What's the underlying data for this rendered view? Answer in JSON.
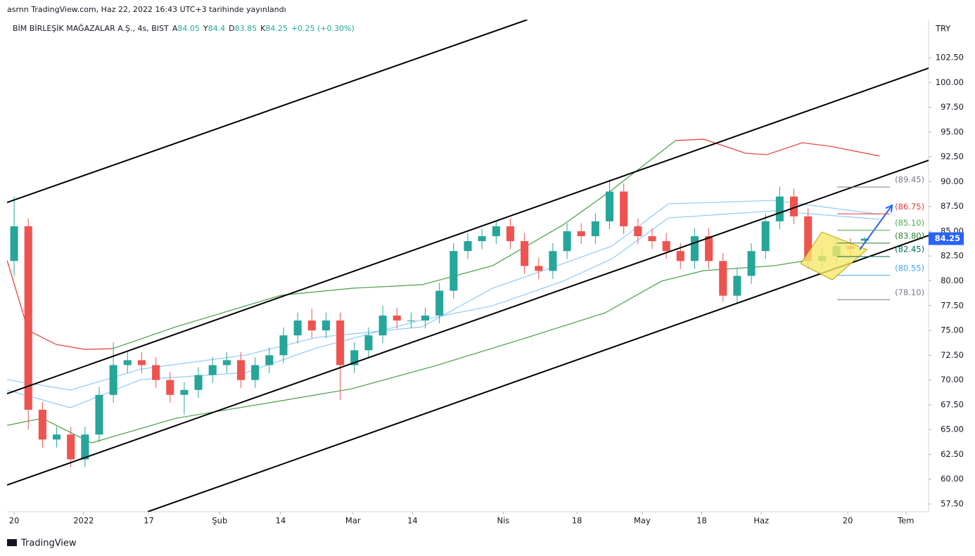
{
  "header": {
    "published": "asrnn TradingView.com, Haz 22, 2022 16:43 UTC+3 tarihinde yayınlandı",
    "symbol": "BİM BİRLEŞİK MAĞAZALAR A.Ş., 4s, BIST",
    "open_label": "A",
    "high_label": "Y",
    "low_label": "D",
    "close_label": "K",
    "change": "+0.25 (+0.30%)",
    "currency": "TRY",
    "logo": "TradingView"
  },
  "chart_data": {
    "type": "candlestick",
    "up_color": "#26a69a",
    "down_color": "#ef5350",
    "xlim": [
      -0.5,
      64.5
    ],
    "ylim": [
      56.72,
      106.33
    ],
    "xticks": [
      {
        "value": 0,
        "label": "20"
      },
      {
        "value": 4.9,
        "label": "2022"
      },
      {
        "value": 9.5,
        "label": "17"
      },
      {
        "value": 14.5,
        "label": "Şub"
      },
      {
        "value": 18.8,
        "label": "14"
      },
      {
        "value": 23.9,
        "label": "Mar"
      },
      {
        "value": 28.1,
        "label": "14"
      },
      {
        "value": 34.5,
        "label": "Nis"
      },
      {
        "value": 39.7,
        "label": "18"
      },
      {
        "value": 44.3,
        "label": "May"
      },
      {
        "value": 48.5,
        "label": "18"
      },
      {
        "value": 52.7,
        "label": "Haz"
      },
      {
        "value": 58.8,
        "label": "20"
      },
      {
        "value": 62.9,
        "label": "Tem"
      }
    ],
    "yticks": [
      {
        "value": 57.5,
        "label": "57.50"
      },
      {
        "value": 60,
        "label": "60.00"
      },
      {
        "value": 62.5,
        "label": "62.50"
      },
      {
        "value": 65,
        "label": "65.00"
      },
      {
        "value": 67.5,
        "label": "67.50"
      },
      {
        "value": 70,
        "label": "70.00"
      },
      {
        "value": 72.5,
        "label": "72.50"
      },
      {
        "value": 75,
        "label": "75.00"
      },
      {
        "value": 77.5,
        "label": "77.50"
      },
      {
        "value": 80,
        "label": "80.00"
      },
      {
        "value": 82.5,
        "label": "82.50"
      },
      {
        "value": 85,
        "label": "85.00"
      },
      {
        "value": 87.5,
        "label": "87.50"
      },
      {
        "value": 90,
        "label": "90.00"
      },
      {
        "value": 92.5,
        "label": "92.50"
      },
      {
        "value": 95,
        "label": "95.00"
      },
      {
        "value": 97.5,
        "label": "97.50"
      },
      {
        "value": 100,
        "label": "100.00"
      },
      {
        "value": 102.5,
        "label": "102.50"
      }
    ],
    "series": {
      "open": [
        82,
        85.5,
        67,
        64,
        64.5,
        62,
        64.5,
        68.5,
        71.5,
        72,
        71.5,
        70,
        68.5,
        69,
        70.5,
        71.5,
        72,
        70,
        71.5,
        72.5,
        74.5,
        76,
        75,
        76,
        71.5,
        73,
        74.5,
        76.5,
        76,
        76,
        76.5,
        79,
        83,
        84,
        84.5,
        85.5,
        84,
        81.5,
        81,
        83,
        85,
        84.5,
        86,
        89,
        85.5,
        84.5,
        84,
        83,
        82,
        84.5,
        82,
        78.5,
        80.5,
        83,
        86,
        88.5,
        86.5,
        82,
        82.5,
        83.5,
        84.05
      ],
      "high": [
        88.5,
        86.3,
        67.8,
        65.3,
        65.3,
        65.3,
        69.3,
        73.8,
        72.8,
        72.8,
        72.3,
        70.8,
        69.8,
        71.3,
        72.3,
        72.8,
        72.8,
        72.3,
        73.3,
        75.3,
        76.8,
        77.2,
        76.8,
        76.8,
        73.8,
        75.3,
        77.5,
        77.3,
        76.8,
        77.3,
        79.8,
        83.8,
        84.8,
        85.3,
        86.1,
        86.3,
        84.8,
        82.3,
        83.8,
        85.8,
        85.8,
        86.8,
        90.2,
        89.8,
        86.3,
        85.3,
        84.8,
        83.8,
        85.3,
        85.3,
        82.8,
        81.3,
        83.8,
        86.8,
        89.5,
        89.3,
        87.3,
        83.3,
        84.3,
        84.3,
        84.4
      ],
      "low": [
        80.5,
        65,
        63.2,
        63.2,
        61.2,
        61.2,
        63.7,
        67.7,
        70.7,
        70.7,
        69.2,
        67.7,
        66.5,
        68.2,
        69.7,
        70.7,
        69.2,
        69.2,
        70.7,
        71.7,
        73.7,
        74.2,
        74.2,
        68,
        70.7,
        72.2,
        73.7,
        75.2,
        75.2,
        75.2,
        75.7,
        78.2,
        82.2,
        83.2,
        83.7,
        83.2,
        80.7,
        80.2,
        80.2,
        82.2,
        83.7,
        83.7,
        85.2,
        84.7,
        83.7,
        83.2,
        82.2,
        81.2,
        81.2,
        81.2,
        77.9,
        77.7,
        79.7,
        82.2,
        85.2,
        85.7,
        81.2,
        81.2,
        81.7,
        82.4,
        83.85
      ],
      "close": [
        85.5,
        67,
        64,
        64.5,
        62,
        64.5,
        68.5,
        71.5,
        72,
        71.5,
        70,
        68.5,
        69,
        70.5,
        71.5,
        72,
        70,
        71.5,
        72.5,
        74.5,
        76,
        75,
        76,
        71.5,
        73,
        74.5,
        76.5,
        76,
        76,
        76.5,
        79,
        83,
        84,
        84.5,
        85.5,
        84,
        81.5,
        81,
        83,
        85,
        84.5,
        86,
        89,
        85.5,
        84.5,
        84,
        83,
        82,
        84.5,
        82,
        78.5,
        80.5,
        83,
        86,
        88.5,
        86.5,
        82,
        82.5,
        83.5,
        83.2,
        84.25
      ]
    },
    "price_tag_color": "#2962ff",
    "trendline_color": "#000000",
    "trendlines": [
      {
        "x": [
          -0.5,
          36.2
        ],
        "y": [
          87.9,
          106.33
        ]
      },
      {
        "x": [
          -0.5,
          64.5
        ],
        "y": [
          68.62,
          101.44
        ]
      },
      {
        "x": [
          -0.5,
          64.5
        ],
        "y": [
          59.41,
          92.15
        ]
      },
      {
        "x": [
          9.43,
          64.5
        ],
        "y": [
          56.72,
          84.57
        ]
      }
    ],
    "bands": [
      {
        "color": "#e53935",
        "x": [
          -0.5,
          0.99,
          2.97,
          4.96,
          6.94
        ],
        "y": [
          82.09,
          75.0,
          73.58,
          73.09,
          73.16
        ]
      },
      {
        "color": "#43a047",
        "x": [
          6.94,
          11.41,
          18.85,
          23.82,
          28.78,
          33.74,
          38.71,
          42.18,
          46.65
        ],
        "y": [
          73.16,
          75.36,
          78.55,
          79.25,
          79.61,
          81.52,
          85.63,
          89.18,
          94.14
        ]
      },
      {
        "color": "#e53935",
        "x": [
          46.65,
          48.63,
          51.61,
          53.1,
          55.58,
          57.56,
          61.04
        ],
        "y": [
          94.14,
          94.28,
          92.86,
          92.72,
          93.92,
          93.57,
          92.58
        ]
      },
      {
        "color": "#43a047",
        "x": [
          -0.5,
          1.98,
          5.46,
          11.41,
          18.85,
          23.82,
          29.77,
          35.73,
          41.68,
          45.65,
          48.63,
          53.59,
          56.08
        ],
        "y": [
          65.43,
          66.14,
          63.66,
          66.14,
          67.91,
          69.12,
          71.46,
          74.08,
          76.77,
          79.96,
          81.03,
          81.52,
          82.09
        ]
      },
      {
        "color": "#90caf9",
        "x": [
          -0.5,
          3.97,
          8.93,
          16.37,
          21.34,
          28.78,
          33.74,
          38.71,
          42.18,
          46.15,
          53.59,
          61.04
        ],
        "y": [
          70.04,
          68.98,
          71.1,
          72.52,
          74.29,
          75.36,
          79.25,
          81.73,
          83.51,
          87.76,
          88.11,
          86.7
        ]
      },
      {
        "color": "#90caf9",
        "x": [
          -0.5,
          3.97,
          8.93,
          16.37,
          21.34,
          28.78,
          33.74,
          38.71,
          42.18,
          46.15,
          53.59,
          61.04
        ],
        "y": [
          68.98,
          67.21,
          70.04,
          70.75,
          73.23,
          76.07,
          77.48,
          79.96,
          82.23,
          86.34,
          87.05,
          86.2
        ]
      }
    ],
    "pattern": {
      "fill": "#f7e86b",
      "stroke": "#b8a200",
      "x": [
        55.48,
        56.97,
        60.14,
        57.71
      ],
      "y": [
        81.73,
        84.92,
        83.15,
        80.1
      ]
    },
    "arrow": {
      "color": "#2962ff",
      "x": [
        59.65,
        61.93
      ],
      "y": [
        83.15,
        87.62
      ]
    },
    "levels": [
      {
        "value": 89.45,
        "label": "(89.45)",
        "color": "#787b86",
        "x": [
          58.06,
          61.78
        ]
      },
      {
        "value": 86.75,
        "label": "(86.75)",
        "color": "#e53935",
        "x": [
          58.06,
          61.78
        ]
      },
      {
        "value": 85.1,
        "label": "(85.10)",
        "color": "#4caf50",
        "x": [
          58.06,
          61.78
        ]
      },
      {
        "value": 83.8,
        "label": "(83.80)",
        "color": "#2e7d32",
        "x": [
          58.06,
          61.78
        ]
      },
      {
        "value": 82.45,
        "label": "(82.45)",
        "color": "#00695c",
        "x": [
          58.06,
          61.78
        ]
      },
      {
        "value": 80.55,
        "label": "(80.55)",
        "color": "#42a5f5",
        "x": [
          58.06,
          61.78
        ]
      },
      {
        "value": 78.1,
        "label": "(78.10)",
        "color": "#787b86",
        "x": [
          58.06,
          61.78
        ]
      }
    ]
  }
}
